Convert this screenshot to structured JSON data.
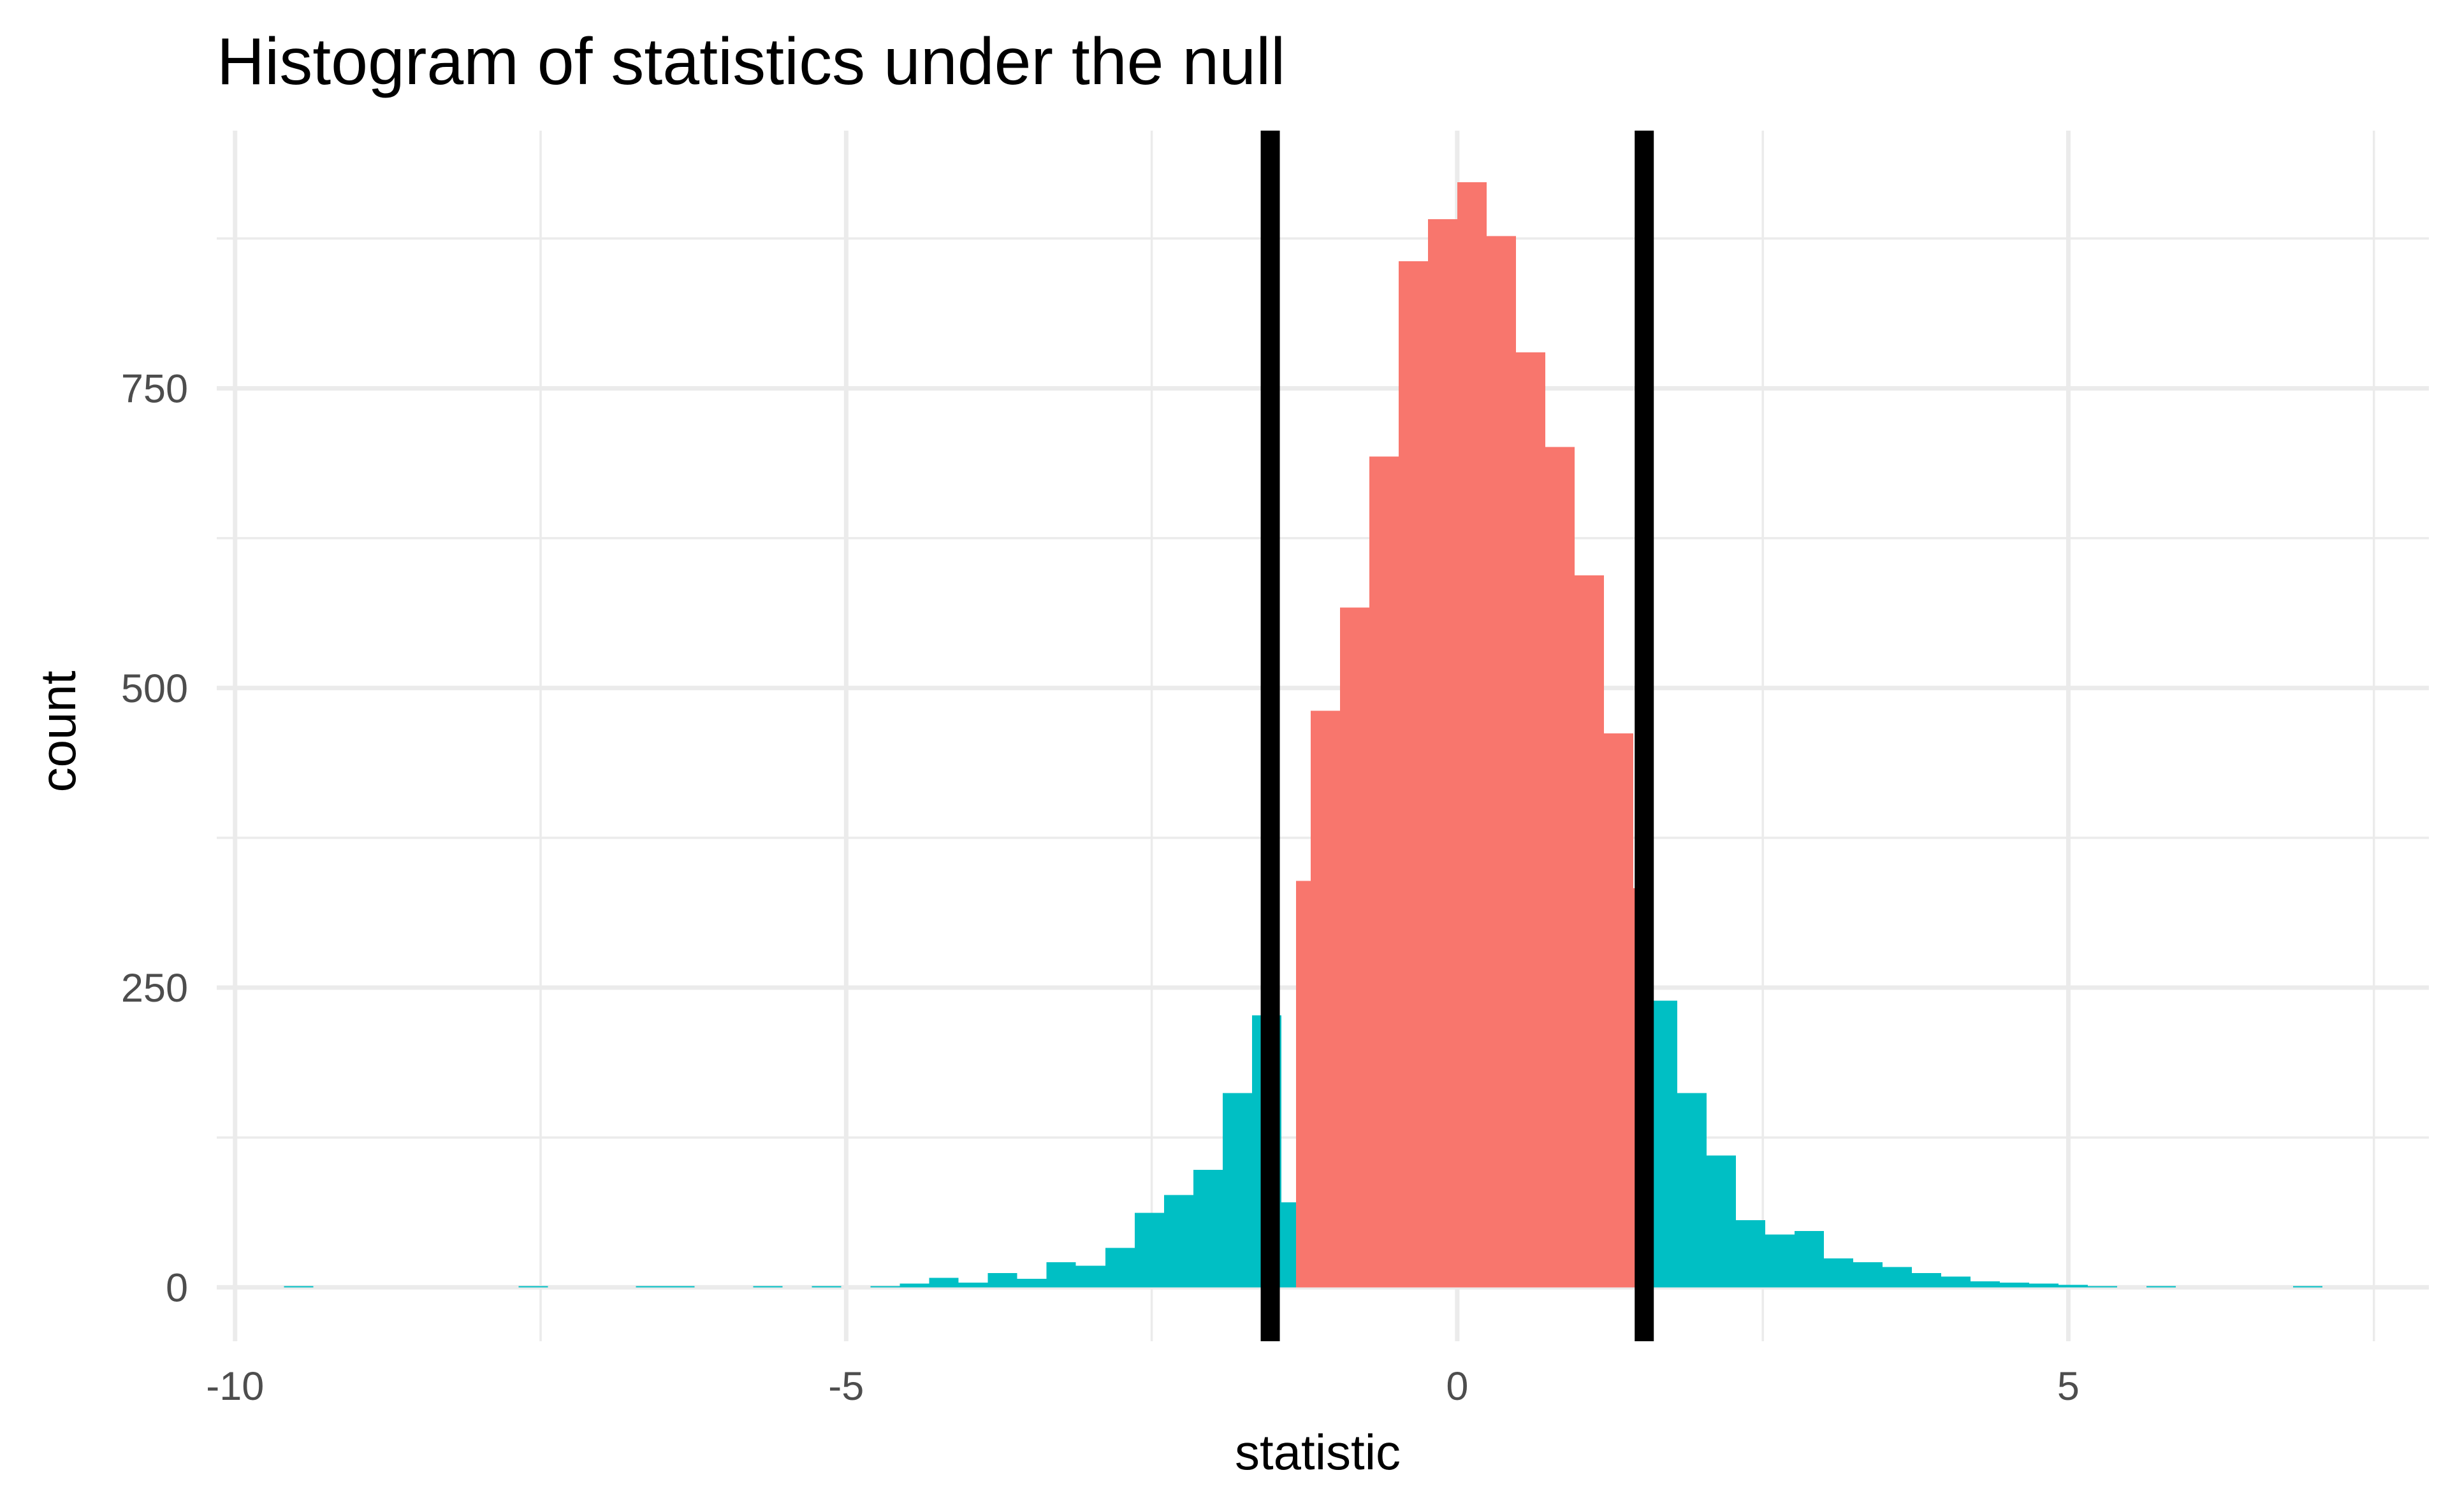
{
  "chart_data": {
    "type": "bar",
    "title": "Histogram of statistics under the null",
    "xlabel": "statistic",
    "ylabel": "count",
    "xlim": [
      -10.15,
      7.95
    ],
    "ylim": [
      -45,
      965
    ],
    "x_ticks": [
      -10,
      -5,
      0,
      5
    ],
    "x_tick_labels": [
      "-10",
      "-5",
      "0",
      "5"
    ],
    "x_minor": [
      -7.5,
      -2.5,
      2.5,
      7.5
    ],
    "y_ticks": [
      0,
      250,
      500,
      750
    ],
    "y_tick_labels": [
      "0",
      "250",
      "500",
      "750"
    ],
    "y_minor": [
      125,
      375,
      625,
      875
    ],
    "grid": true,
    "legend": "none",
    "colors": {
      "inside": "#F8766D",
      "outside": "#00BFC4",
      "line": "#000000"
    },
    "bin_width": 0.24,
    "series": [
      {
        "values": [
          {
            "x0": -9.6,
            "x1": -9.36,
            "count": 1
          },
          {
            "x0": -7.68,
            "x1": -7.44,
            "count": 1
          },
          {
            "x0": -6.72,
            "x1": -6.48,
            "count": 1
          },
          {
            "x0": -6.48,
            "x1": -6.24,
            "count": 1
          },
          {
            "x0": -5.76,
            "x1": -5.52,
            "count": 1
          },
          {
            "x0": -5.28,
            "x1": -5.04,
            "count": 1
          },
          {
            "x0": -4.8,
            "x1": -4.56,
            "count": 1
          },
          {
            "x0": -4.56,
            "x1": -4.32,
            "count": 3
          },
          {
            "x0": -4.32,
            "x1": -4.08,
            "count": 8
          },
          {
            "x0": -4.08,
            "x1": -3.84,
            "count": 4
          },
          {
            "x0": -3.84,
            "x1": -3.6,
            "count": 12
          },
          {
            "x0": -3.6,
            "x1": -3.36,
            "count": 7
          },
          {
            "x0": -3.36,
            "x1": -3.12,
            "count": 21
          },
          {
            "x0": -3.12,
            "x1": -2.88,
            "count": 18
          },
          {
            "x0": -2.88,
            "x1": -2.64,
            "count": 33
          },
          {
            "x0": -2.64,
            "x1": -2.4,
            "count": 62
          },
          {
            "x0": -2.4,
            "x1": -2.16,
            "count": 77
          },
          {
            "x0": -2.16,
            "x1": -1.92,
            "count": 98
          },
          {
            "x0": -1.92,
            "x1": -1.68,
            "count": 162
          },
          {
            "x0": -1.68,
            "x1": -1.44,
            "count": 227
          },
          {
            "x0": -1.44,
            "x1": -1.2,
            "count": 71
          },
          {
            "x0": 1.32,
            "x1": 1.56,
            "count": 75
          },
          {
            "x0": 1.56,
            "x1": 1.8,
            "count": 239
          },
          {
            "x0": 1.8,
            "x1": 2.04,
            "count": 162
          },
          {
            "x0": 2.04,
            "x1": 2.28,
            "count": 110
          },
          {
            "x0": 2.28,
            "x1": 2.52,
            "count": 56
          },
          {
            "x0": 2.52,
            "x1": 2.76,
            "count": 44
          },
          {
            "x0": 2.76,
            "x1": 3.0,
            "count": 47
          },
          {
            "x0": 3.0,
            "x1": 3.24,
            "count": 24
          },
          {
            "x0": 3.24,
            "x1": 3.48,
            "count": 21
          },
          {
            "x0": 3.48,
            "x1": 3.72,
            "count": 17
          },
          {
            "x0": 3.72,
            "x1": 3.96,
            "count": 12
          },
          {
            "x0": 3.96,
            "x1": 4.2,
            "count": 9
          },
          {
            "x0": 4.2,
            "x1": 4.44,
            "count": 5
          },
          {
            "x0": 4.44,
            "x1": 4.68,
            "count": 4
          },
          {
            "x0": 4.68,
            "x1": 4.92,
            "count": 3
          },
          {
            "x0": 4.92,
            "x1": 5.16,
            "count": 2
          },
          {
            "x0": 5.16,
            "x1": 5.4,
            "count": 1
          },
          {
            "x0": 5.64,
            "x1": 5.88,
            "count": 1
          },
          {
            "x0": 6.84,
            "x1": 7.08,
            "count": 1
          }
        ]
      },
      {
        "values": [
          {
            "x0": -1.32,
            "x1": -1.08,
            "count": 339
          },
          {
            "x0": -1.2,
            "x1": -0.96,
            "count": 481
          },
          {
            "x0": -0.96,
            "x1": -0.72,
            "count": 567
          },
          {
            "x0": -0.72,
            "x1": -0.48,
            "count": 693
          },
          {
            "x0": -0.48,
            "x1": -0.24,
            "count": 856
          },
          {
            "x0": -0.24,
            "x1": 0.0,
            "count": 891
          },
          {
            "x0": 0.0,
            "x1": 0.24,
            "count": 922
          },
          {
            "x0": 0.24,
            "x1": 0.48,
            "count": 877
          },
          {
            "x0": 0.48,
            "x1": 0.72,
            "count": 780
          },
          {
            "x0": 0.72,
            "x1": 0.96,
            "count": 701
          },
          {
            "x0": 0.96,
            "x1": 1.2,
            "count": 594
          },
          {
            "x0": 1.2,
            "x1": 1.44,
            "count": 462
          },
          {
            "x0": 1.44,
            "x1": 1.56,
            "count": 333
          }
        ]
      }
    ],
    "vlines": [
      -1.53,
      1.53
    ]
  }
}
